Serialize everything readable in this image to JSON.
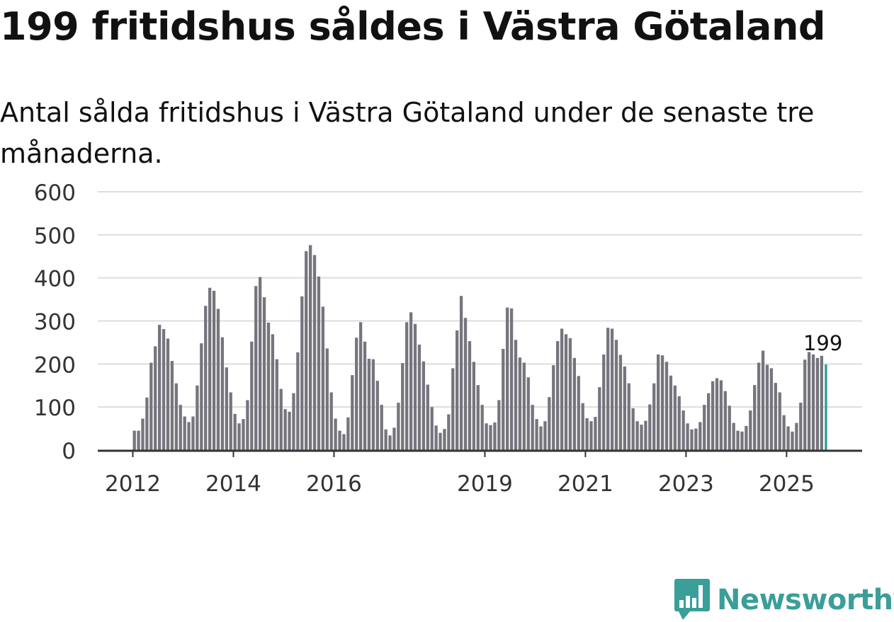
{
  "title": "199 fritidshus såldes i Västra Götaland",
  "subtitle": "Antal sålda fritidshus i Västra Götaland under de senaste tre månaderna.",
  "brand": {
    "name": "Newsworthy",
    "icon": "newsworthy-chart-icon",
    "color": "#3a9e99"
  },
  "colors": {
    "bar": "#76757e",
    "highlight": "#2e9e96",
    "grid": "#dddddd",
    "axis": "#333333"
  },
  "chart_data": {
    "type": "bar",
    "title": "199 fritidshus såldes i Västra Götaland",
    "subtitle": "Antal sålda fritidshus i Västra Götaland under de senaste tre månaderna.",
    "xlabel": "",
    "ylabel": "",
    "ylim": [
      0,
      600
    ],
    "yticks": [
      0,
      100,
      200,
      300,
      400,
      500,
      600
    ],
    "xticks": [
      "2012",
      "2014",
      "2016",
      "2019",
      "2021",
      "2023",
      "2025"
    ],
    "start": "2012-01",
    "grid": true,
    "highlight_label": "199",
    "series": [
      {
        "values": [
          45,
          45,
          73,
          122,
          203,
          241,
          291,
          281,
          259,
          207,
          155,
          105,
          78,
          65,
          78,
          150,
          248,
          335,
          377,
          370,
          328,
          262,
          192,
          134,
          84,
          62,
          72,
          116,
          252,
          381,
          402,
          355,
          296,
          269,
          211,
          142,
          95,
          89,
          132,
          227,
          357,
          462,
          476,
          453,
          403,
          333,
          236,
          134,
          73,
          45,
          37,
          76,
          174,
          261,
          297,
          252,
          212,
          211,
          161,
          105,
          48,
          34,
          52,
          110,
          202,
          297,
          320,
          293,
          245,
          206,
          152,
          100,
          57,
          40,
          49,
          83,
          190,
          278,
          358,
          307,
          253,
          205,
          151,
          105,
          62,
          58,
          64,
          116,
          235,
          331,
          329,
          256,
          215,
          203,
          169,
          105,
          72,
          55,
          67,
          123,
          197,
          253,
          282,
          269,
          260,
          214,
          172,
          109,
          74,
          67,
          77,
          146,
          222,
          284,
          282,
          256,
          221,
          194,
          155,
          97,
          67,
          59,
          68,
          106,
          155,
          222,
          220,
          205,
          173,
          150,
          125,
          92,
          62,
          48,
          50,
          65,
          105,
          132,
          160,
          167,
          162,
          137,
          103,
          63,
          45,
          43,
          56,
          92,
          151,
          203,
          231,
          198,
          190,
          156,
          134,
          81,
          55,
          43,
          63,
          110,
          210,
          229,
          222,
          214,
          219,
          199
        ]
      }
    ]
  }
}
